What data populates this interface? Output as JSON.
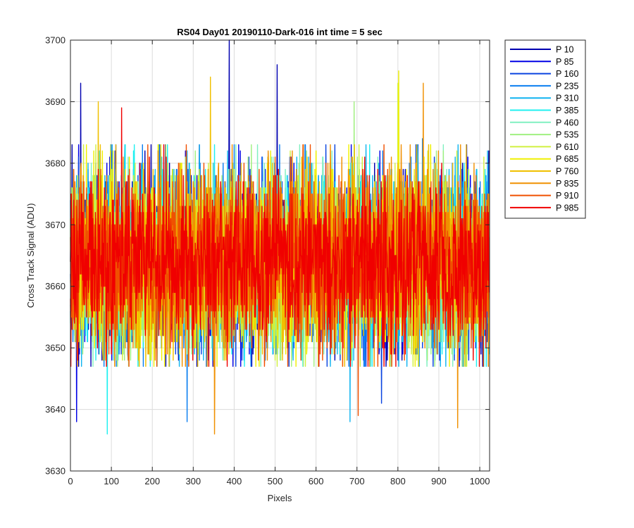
{
  "chart_data": {
    "type": "line",
    "title": "RS04 Day01 20190110-Dark-016 int time = 5 sec",
    "xlabel": "Pixels",
    "ylabel": "Cross Track Signal (ADU)",
    "xlim": [
      0,
      1024
    ],
    "ylim": [
      3630,
      3700
    ],
    "xticks": [
      0,
      100,
      200,
      300,
      400,
      500,
      600,
      700,
      800,
      900,
      1000
    ],
    "yticks": [
      3630,
      3640,
      3650,
      3660,
      3670,
      3680,
      3690,
      3700
    ],
    "grid": true,
    "legend_position": "outside-top-right",
    "noise_model": {
      "mean": 3664,
      "std": 7,
      "points_per_series": 1024
    },
    "series": [
      {
        "name": "P 10",
        "color": "#0000b0",
        "peaks": [
          {
            "x": 388,
            "y": 3700
          },
          {
            "x": 505,
            "y": 3696
          },
          {
            "x": 25,
            "y": 3693
          }
        ]
      },
      {
        "name": "P 85",
        "color": "#0000e6",
        "peaks": [
          {
            "x": 15,
            "y": 3638
          }
        ]
      },
      {
        "name": "P 160",
        "color": "#0a44e0",
        "peaks": [
          {
            "x": 760,
            "y": 3641
          }
        ]
      },
      {
        "name": "P 235",
        "color": "#0a7ef0",
        "peaks": [
          {
            "x": 285,
            "y": 3638
          },
          {
            "x": 860,
            "y": 3684
          }
        ]
      },
      {
        "name": "P 310",
        "color": "#10b4f0",
        "peaks": [
          {
            "x": 683,
            "y": 3638
          }
        ]
      },
      {
        "name": "P 385",
        "color": "#20f0f0",
        "peaks": [
          {
            "x": 90,
            "y": 3636
          }
        ]
      },
      {
        "name": "P 460",
        "color": "#80f0c0",
        "peaks": [
          {
            "x": 560,
            "y": 3683
          }
        ]
      },
      {
        "name": "P 535",
        "color": "#a0f080",
        "peaks": [
          {
            "x": 693,
            "y": 3690
          }
        ]
      },
      {
        "name": "P 610",
        "color": "#d0f040",
        "peaks": [
          {
            "x": 800,
            "y": 3693
          }
        ]
      },
      {
        "name": "P 685",
        "color": "#f0f000",
        "peaks": [
          {
            "x": 802,
            "y": 3695
          }
        ]
      },
      {
        "name": "P 760",
        "color": "#f0c000",
        "peaks": [
          {
            "x": 342,
            "y": 3694
          },
          {
            "x": 68,
            "y": 3690
          }
        ]
      },
      {
        "name": "P 835",
        "color": "#f09000",
        "peaks": [
          {
            "x": 352,
            "y": 3636
          },
          {
            "x": 946,
            "y": 3637
          },
          {
            "x": 862,
            "y": 3693
          }
        ]
      },
      {
        "name": "P 910",
        "color": "#f05000",
        "peaks": [
          {
            "x": 703,
            "y": 3639
          }
        ]
      },
      {
        "name": "P 985",
        "color": "#f00000",
        "peaks": [
          {
            "x": 125,
            "y": 3689
          }
        ]
      }
    ]
  }
}
